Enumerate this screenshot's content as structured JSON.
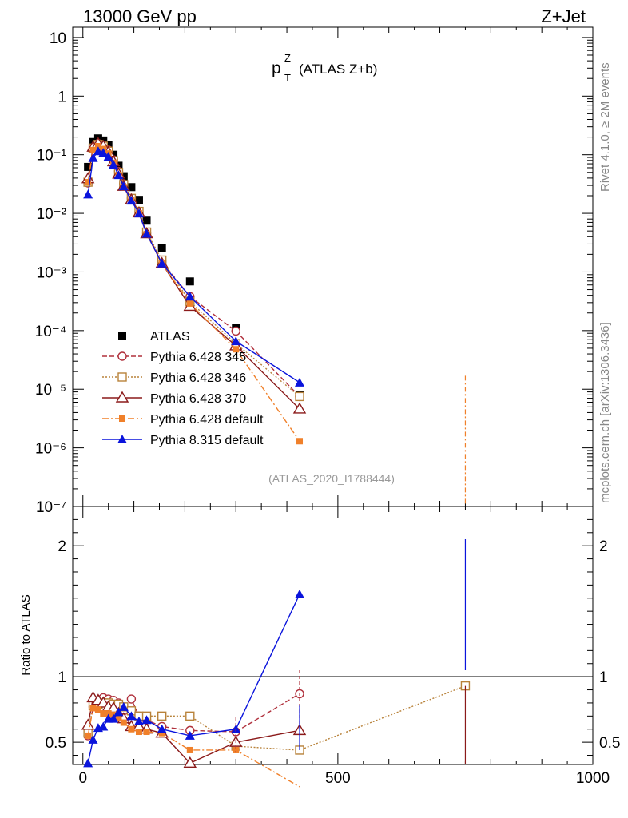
{
  "header": {
    "left": "13000 GeV pp",
    "right": "Z+Jet"
  },
  "side": {
    "rivet": "Rivet 4.1.0, ≥ 2M events",
    "mcplots": "mcplots.cern.ch [arXiv:1306.3436]"
  },
  "plot": {
    "title_main": "p",
    "title_sup": "Z",
    "title_sub": "T",
    "title_rest": "(ATLAS Z+b)",
    "analysis": "(ATLAS_2020_I1788444)",
    "ratio_ylabel": "Ratio to ATLAS"
  },
  "chart_data": {
    "type": "scatter",
    "x": [
      10,
      20,
      30,
      40,
      50,
      60,
      70,
      80,
      95,
      110,
      125,
      155,
      210,
      300,
      425,
      750
    ],
    "series": [
      {
        "name": "ATLAS",
        "color": "#000000",
        "values": [
          0.062,
          0.165,
          0.19,
          0.175,
          0.145,
          0.1,
          0.065,
          0.043,
          0.028,
          0.017,
          0.0075,
          0.0026,
          0.00069,
          0.00011,
          8e-06,
          null
        ]
      },
      {
        "name": "Pythia 6.428 345",
        "color": "#b0303c",
        "values": [
          0.033,
          0.13,
          0.155,
          0.145,
          0.12,
          0.082,
          0.052,
          0.032,
          0.018,
          0.0105,
          0.0046,
          0.0015,
          0.00038,
          9.8e-05,
          7.5e-06,
          null
        ]
      },
      {
        "name": "Pythia 6.428 346",
        "color": "#b8823a",
        "values": [
          0.034,
          0.13,
          0.15,
          0.14,
          0.115,
          0.079,
          0.05,
          0.031,
          0.018,
          0.0108,
          0.0048,
          0.0016,
          0.00031,
          6e-05,
          7.5e-06,
          null
        ]
      },
      {
        "name": "Pythia 6.428 370",
        "color": "#8b1a1a",
        "values": [
          0.039,
          0.135,
          0.155,
          0.14,
          0.11,
          0.076,
          0.047,
          0.029,
          0.017,
          0.0102,
          0.0045,
          0.0014,
          0.00026,
          5.5e-05,
          4.6e-06,
          null
        ]
      },
      {
        "name": "Pythia 6.428 default",
        "color": "#f0802a",
        "values": [
          0.034,
          0.12,
          0.14,
          0.125,
          0.105,
          0.073,
          0.045,
          0.028,
          0.0165,
          0.01,
          0.0044,
          0.0014,
          0.00029,
          4.8e-05,
          1.3e-06,
          null
        ]
      },
      {
        "name": "Pythia 8.315 default",
        "color": "#0a14dc",
        "values": [
          0.021,
          0.088,
          0.115,
          0.108,
          0.093,
          0.068,
          0.045,
          0.029,
          0.0165,
          0.01,
          0.0045,
          0.0014,
          0.00038,
          6.6e-05,
          1.3e-05,
          null
        ]
      }
    ],
    "ratio": {
      "ylabel": "Ratio to ATLAS",
      "ylim": [
        0.33,
        2.3
      ],
      "reference": 1,
      "series": [
        {
          "name": "Pythia 6.428 345",
          "values": [
            0.55,
            0.77,
            0.82,
            0.84,
            0.83,
            0.82,
            0.8,
            0.74,
            0.83,
            0.7,
            0.67,
            0.62,
            0.59,
            0.58,
            0.87,
            null
          ]
        },
        {
          "name": "Pythia 6.428 346",
          "values": [
            0.57,
            0.78,
            0.79,
            0.8,
            0.8,
            0.79,
            0.79,
            0.77,
            0.74,
            0.7,
            0.7,
            0.7,
            0.7,
            0.47,
            0.44,
            0.93
          ]
        },
        {
          "name": "Pythia 6.428 370",
          "values": [
            0.63,
            0.84,
            0.82,
            0.8,
            0.77,
            0.76,
            0.72,
            0.68,
            0.62,
            0.62,
            0.6,
            0.57,
            0.34,
            0.5,
            0.59,
            null
          ]
        },
        {
          "name": "Pythia 6.428 default",
          "values": [
            0.55,
            0.76,
            0.75,
            0.72,
            0.72,
            0.71,
            0.69,
            0.65,
            0.6,
            0.58,
            0.58,
            0.57,
            0.44,
            0.44,
            0.16,
            null
          ]
        },
        {
          "name": "Pythia 8.315 default",
          "values": [
            0.34,
            0.52,
            0.61,
            0.62,
            0.68,
            0.68,
            0.73,
            0.77,
            0.7,
            0.66,
            0.67,
            0.6,
            0.55,
            0.6,
            1.63,
            null
          ]
        }
      ]
    },
    "xlim": [
      -20,
      1000
    ],
    "ylim_log": [
      1e-07,
      15
    ],
    "x_ticks": [
      0,
      500,
      1000
    ],
    "y_ticks_main": [
      "10",
      "1",
      "10⁻¹",
      "10⁻²",
      "10⁻³",
      "10⁻⁴",
      "10⁻⁵",
      "10⁻⁶",
      "10⁻⁷"
    ],
    "y_ticks_ratio": [
      "0.5",
      "1",
      "2"
    ],
    "legend": [
      "ATLAS",
      "Pythia 6.428 345",
      "Pythia 6.428 346",
      "Pythia 6.428 370",
      "Pythia 6.428 default",
      "Pythia 8.315 default"
    ],
    "legend_position": "bottom-left"
  }
}
